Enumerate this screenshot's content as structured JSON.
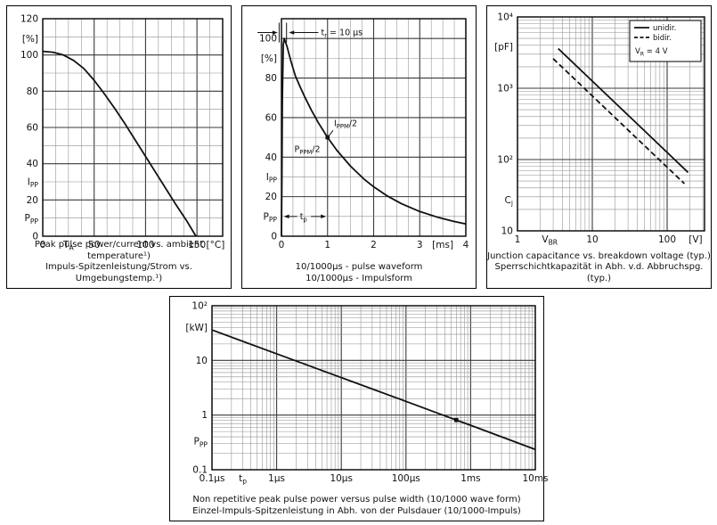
{
  "figure": {
    "colors": {
      "curve": "#111111",
      "grid_minor": "#8f8f8f",
      "grid_major": "#3a3a3a",
      "border": "#000000",
      "text": "#111111"
    },
    "panels": [
      {
        "captions": [
          "Peak pulse power/current vs. ambient temperature¹)",
          "Impuls-Spitzenleistung/Strom vs. Umgebungstemp.¹)"
        ]
      },
      {
        "captions": [
          "10/1000µs - pulse waveform",
          "10/1000µs - Impulsform"
        ]
      },
      {
        "captions": [
          "Junction capacitance vs. breakdown voltage (typ.)",
          "Sperrschichtkapazität in Abh. v.d. Abbruchspg. (typ.)"
        ]
      },
      {
        "captions": [
          "Non repetitive peak pulse power  versus pulse width (10/1000 wave form)",
          "Einzel-Impuls-Spitzenleistung in Abh. von der Pulsdauer (10/1000-Impuls)"
        ]
      }
    ]
  },
  "chart_data": [
    {
      "type": "line",
      "name": "derating-vs-ambient-temperature",
      "x_scale": "linear",
      "y_scale": "linear",
      "xlim": [
        0,
        175
      ],
      "ylim": [
        0,
        120
      ],
      "x_minor_step": 12.5,
      "y_minor_step": 10,
      "x_major": [
        0,
        50,
        100,
        150
      ],
      "y_major": [
        0,
        20,
        40,
        60,
        80,
        100,
        120
      ],
      "x_tick_labels": [
        {
          "v": 0,
          "t": "0"
        },
        {
          "v": 50,
          "t": "50"
        },
        {
          "v": 100,
          "t": "100"
        },
        {
          "v": 150,
          "t": "150"
        }
      ],
      "x_extra_labels": [
        {
          "v": 25,
          "t": "T_{A}"
        },
        {
          "v": 168,
          "t": "[°C]"
        }
      ],
      "y_tick_labels": [
        {
          "v": 0,
          "t": "0"
        },
        {
          "v": 20,
          "t": "20"
        },
        {
          "v": 40,
          "t": "40"
        },
        {
          "v": 60,
          "t": "60"
        },
        {
          "v": 80,
          "t": "80"
        },
        {
          "v": 100,
          "t": "100"
        },
        {
          "v": 120,
          "t": "120"
        }
      ],
      "y_extra_labels": [
        {
          "v": 109,
          "t": "[%]"
        },
        {
          "v": 30,
          "t": "I_{PP}"
        },
        {
          "v": 10,
          "t": "P_{PP}"
        }
      ],
      "series": [
        {
          "name": "derating",
          "style": "solid",
          "points": [
            [
              0,
              102
            ],
            [
              10,
              101.5
            ],
            [
              20,
              100
            ],
            [
              30,
              97
            ],
            [
              40,
              92.5
            ],
            [
              50,
              86
            ],
            [
              60,
              78.5
            ],
            [
              70,
              70.5
            ],
            [
              80,
              62
            ],
            [
              90,
              53
            ],
            [
              100,
              44
            ],
            [
              110,
              35
            ],
            [
              120,
              26
            ],
            [
              130,
              17
            ],
            [
              140,
              8.5
            ],
            [
              149,
              0
            ]
          ]
        }
      ]
    },
    {
      "type": "line",
      "name": "pulse-waveform-10-1000us",
      "x_scale": "linear",
      "y_scale": "linear",
      "xlim": [
        0,
        4
      ],
      "ylim": [
        0,
        110
      ],
      "x_minor_step": 0.25,
      "y_minor_step": 10,
      "x_major": [
        0,
        1,
        2,
        3,
        4
      ],
      "y_major": [
        0,
        20,
        40,
        60,
        80,
        100
      ],
      "x_tick_labels": [
        {
          "v": 0,
          "t": "0"
        },
        {
          "v": 1,
          "t": "1"
        },
        {
          "v": 2,
          "t": "2"
        },
        {
          "v": 3,
          "t": "3"
        },
        {
          "v": 4,
          "t": "4"
        }
      ],
      "x_extra_labels": [
        {
          "v": 3.5,
          "t": "[ms]"
        }
      ],
      "y_tick_labels": [
        {
          "v": 0,
          "t": "0"
        },
        {
          "v": 20,
          "t": "20"
        },
        {
          "v": 40,
          "t": "40"
        },
        {
          "v": 60,
          "t": "60"
        },
        {
          "v": 80,
          "t": "80"
        },
        {
          "v": 100,
          "t": "100"
        }
      ],
      "y_extra_labels": [
        {
          "v": 90,
          "t": "[%]"
        },
        {
          "v": 30,
          "t": "I_{PP}"
        },
        {
          "v": 10,
          "t": "P_{PP}"
        }
      ],
      "series": [
        {
          "name": "waveform",
          "style": "solid",
          "points": [
            [
              0,
              0
            ],
            [
              0.01,
              30
            ],
            [
              0.02,
              70
            ],
            [
              0.04,
              97
            ],
            [
              0.06,
              100
            ],
            [
              0.12,
              96
            ],
            [
              0.2,
              89
            ],
            [
              0.3,
              81.2
            ],
            [
              0.4,
              75.8
            ],
            [
              0.5,
              70.7
            ],
            [
              0.65,
              63.7
            ],
            [
              0.8,
              57.4
            ],
            [
              1,
              50
            ],
            [
              1.2,
              43.5
            ],
            [
              1.5,
              35.4
            ],
            [
              1.8,
              28.7
            ],
            [
              2,
              25
            ],
            [
              2.3,
              20.3
            ],
            [
              2.6,
              16.5
            ],
            [
              3,
              12.5
            ],
            [
              3.4,
              9.5
            ],
            [
              3.7,
              7.7
            ],
            [
              4,
              6.2
            ]
          ]
        }
      ],
      "markers": [
        {
          "x": 1,
          "y": 50
        }
      ],
      "annotations": [
        {
          "t": "t_{r} = 10 µs",
          "x": 0.86,
          "y": 103,
          "anchor": "start",
          "dy": 3
        },
        {
          "t": "I_{PPM}/2",
          "x": 1.14,
          "y": 57,
          "anchor": "start",
          "dy": 3
        },
        {
          "t": "P_{PPM}/2",
          "x": 0.28,
          "y": 44,
          "anchor": "start",
          "dy": 3
        },
        {
          "t": "t_{p}",
          "x": 0.4,
          "y": 10,
          "anchor": "start",
          "dy": 3
        }
      ],
      "arrows": [
        {
          "x1": -0.52,
          "y1": 103,
          "x2": -0.08,
          "y2": 103
        },
        {
          "x1": 0.8,
          "y1": 103,
          "x2": 0.16,
          "y2": 103
        },
        {
          "x1": 0.34,
          "y1": 10,
          "x2": 0.05,
          "y2": 10
        },
        {
          "x1": 0.64,
          "y1": 10,
          "x2": 0.97,
          "y2": 10
        }
      ],
      "lines": [
        {
          "x1": -0.05,
          "y1": 98,
          "x2": -0.05,
          "y2": 108
        },
        {
          "x1": 0.11,
          "y1": 98,
          "x2": 0.11,
          "y2": 108
        },
        {
          "x1": 1.12,
          "y1": 53.5,
          "x2": 1.03,
          "y2": 50.8
        }
      ]
    },
    {
      "type": "line",
      "name": "junction-capacitance-vs-breakdown-voltage",
      "x_scale": "log",
      "y_scale": "log",
      "xlim": [
        1,
        316
      ],
      "ylim": [
        10,
        10000
      ],
      "x_tick_labels": [
        {
          "v": 1,
          "t": "1"
        },
        {
          "v": 10,
          "t": "10"
        },
        {
          "v": 100,
          "t": "100"
        }
      ],
      "x_extra_labels": [
        {
          "v": 2.7,
          "t": "V_{BR}"
        },
        {
          "v": 240,
          "t": "[V]"
        }
      ],
      "y_tick_labels": [
        {
          "v": 10,
          "t": "10"
        },
        {
          "v": 100,
          "t": "10²"
        },
        {
          "v": 1000,
          "t": "10³"
        },
        {
          "v": 10000,
          "t": "10⁴"
        }
      ],
      "y_extra_labels": [
        {
          "v": 3800,
          "t": "[pF]"
        },
        {
          "v": 27,
          "t": "C_{j}"
        }
      ],
      "series": [
        {
          "name": "unidirectional",
          "style": "solid",
          "points": [
            [
              3.5,
              3600
            ],
            [
              10,
              1260
            ],
            [
              30,
              420
            ],
            [
              100,
              126
            ],
            [
              190,
              66
            ]
          ]
        },
        {
          "name": "bidirectional",
          "style": "dashed",
          "points": [
            [
              3,
              2600
            ],
            [
              10,
              780
            ],
            [
              30,
              260
            ],
            [
              100,
              78
            ],
            [
              170,
              46
            ]
          ]
        }
      ],
      "legend": {
        "entries": [
          {
            "label": "unidir.",
            "style": "solid"
          },
          {
            "label": "bidir.",
            "style": "dashed"
          },
          {
            "label": "V_{R} = 4 V",
            "style": "none"
          }
        ]
      }
    },
    {
      "type": "line",
      "name": "peak-pulse-power-vs-pulse-width",
      "x_scale": "log",
      "y_scale": "log",
      "xlim": [
        1e-07,
        0.01
      ],
      "ylim": [
        0.1,
        100
      ],
      "x_tick_labels": [
        {
          "v": 1e-07,
          "t": "0.1µs"
        },
        {
          "v": 1e-06,
          "t": "1µs"
        },
        {
          "v": 1e-05,
          "t": "10µs"
        },
        {
          "v": 0.0001,
          "t": "100µs"
        },
        {
          "v": 0.001,
          "t": "1ms"
        },
        {
          "v": 0.01,
          "t": "10ms"
        }
      ],
      "x_extra_labels": [
        {
          "v": 3e-07,
          "t": "t_{p}"
        }
      ],
      "y_tick_labels": [
        {
          "v": 0.1,
          "t": "0.1"
        },
        {
          "v": 1,
          "t": "1"
        },
        {
          "v": 10,
          "t": "10"
        },
        {
          "v": 100,
          "t": "10²"
        }
      ],
      "y_extra_labels": [
        {
          "v": 40,
          "t": "[kW]"
        },
        {
          "v": 0.33,
          "t": "P_{PP}"
        }
      ],
      "series": [
        {
          "name": "peak-power",
          "style": "solid",
          "points": [
            [
              1e-07,
              36
            ],
            [
              1e-06,
              13.2
            ],
            [
              1e-05,
              4.85
            ],
            [
              0.0001,
              1.78
            ],
            [
              0.0006,
              0.81
            ],
            [
              0.001,
              0.65
            ],
            [
              0.01,
              0.235
            ]
          ]
        }
      ],
      "markers": [
        {
          "x": 0.0006,
          "y": 0.81
        }
      ]
    }
  ]
}
